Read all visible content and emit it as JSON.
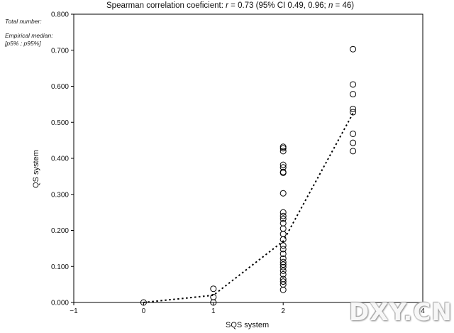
{
  "chart_data": {
    "type": "scatter",
    "title_parts": [
      "Spearman correlation coeficient: ",
      "r",
      " = 0.73 (95% CI 0.49, 0.96; ",
      "n",
      " = 46)"
    ],
    "xlabel": "SQS system",
    "ylabel": "QS system",
    "xlim": [
      -1,
      4
    ],
    "ylim": [
      0,
      0.8
    ],
    "x_ticks": [
      "−1",
      "0",
      "1",
      "2",
      "3",
      "4"
    ],
    "x_tick_values": [
      -1,
      0,
      1,
      2,
      3,
      4
    ],
    "y_ticks": [
      "0.000",
      "0.100",
      "0.200",
      "0.300",
      "0.400",
      "0.500",
      "0.600",
      "0.700",
      "0.800"
    ],
    "y_tick_values": [
      0,
      0.1,
      0.2,
      0.3,
      0.4,
      0.5,
      0.6,
      0.7,
      0.8
    ],
    "grid": false,
    "marker": "open-circle",
    "points": [
      {
        "x": 0,
        "y": 0.0
      },
      {
        "x": 1,
        "y": 0.0
      },
      {
        "x": 1,
        "y": 0.015
      },
      {
        "x": 1,
        "y": 0.038
      },
      {
        "x": 2,
        "y": 0.035
      },
      {
        "x": 2,
        "y": 0.05
      },
      {
        "x": 2,
        "y": 0.058
      },
      {
        "x": 2,
        "y": 0.065
      },
      {
        "x": 2,
        "y": 0.078
      },
      {
        "x": 2,
        "y": 0.088
      },
      {
        "x": 2,
        "y": 0.098
      },
      {
        "x": 2,
        "y": 0.105
      },
      {
        "x": 2,
        "y": 0.112
      },
      {
        "x": 2,
        "y": 0.122
      },
      {
        "x": 2,
        "y": 0.135
      },
      {
        "x": 2,
        "y": 0.148
      },
      {
        "x": 2,
        "y": 0.158
      },
      {
        "x": 2,
        "y": 0.175
      },
      {
        "x": 2,
        "y": 0.19
      },
      {
        "x": 2,
        "y": 0.205
      },
      {
        "x": 2,
        "y": 0.22
      },
      {
        "x": 2,
        "y": 0.232
      },
      {
        "x": 2,
        "y": 0.24
      },
      {
        "x": 2,
        "y": 0.25
      },
      {
        "x": 2,
        "y": 0.303
      },
      {
        "x": 2,
        "y": 0.36
      },
      {
        "x": 2,
        "y": 0.362
      },
      {
        "x": 2,
        "y": 0.375
      },
      {
        "x": 2,
        "y": 0.382
      },
      {
        "x": 2,
        "y": 0.42
      },
      {
        "x": 2,
        "y": 0.428
      },
      {
        "x": 2,
        "y": 0.432
      },
      {
        "x": 3,
        "y": 0.42
      },
      {
        "x": 3,
        "y": 0.443
      },
      {
        "x": 3,
        "y": 0.468
      },
      {
        "x": 3,
        "y": 0.528
      },
      {
        "x": 3,
        "y": 0.537
      },
      {
        "x": 3,
        "y": 0.578
      },
      {
        "x": 3,
        "y": 0.605
      },
      {
        "x": 3,
        "y": 0.703
      }
    ],
    "median_line": {
      "style": "dotted",
      "points": [
        {
          "x": 0,
          "y": 0.0
        },
        {
          "x": 1,
          "y": 0.02
        },
        {
          "x": 2,
          "y": 0.17
        },
        {
          "x": 3,
          "y": 0.525
        }
      ]
    }
  },
  "side_notes": {
    "total": "Total number:",
    "median_line1": "Empirical median:",
    "median_line2": "[p5% ; p95%]"
  },
  "watermark": "DXY.CN"
}
